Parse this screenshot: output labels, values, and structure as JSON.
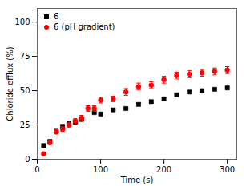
{
  "chart_data": {
    "type": "scatter",
    "xlabel": "Time (s)",
    "ylabel": "Chloride efflux (%)",
    "xlim": [
      0,
      315
    ],
    "ylim": [
      0,
      110
    ],
    "xticks": [
      0,
      100,
      200,
      300
    ],
    "yticks": [
      0,
      25,
      50,
      75,
      100
    ],
    "grid": false,
    "legend": "upper left",
    "series": [
      {
        "name": "6",
        "color": "#000000",
        "marker": "square",
        "x": [
          10,
          20,
          30,
          40,
          50,
          60,
          70,
          90,
          100,
          120,
          140,
          160,
          180,
          200,
          220,
          240,
          260,
          280,
          300
        ],
        "values": [
          10,
          13,
          21,
          24,
          26,
          27,
          29,
          34,
          33,
          36,
          37,
          40,
          42,
          44,
          47,
          49,
          50,
          51,
          52
        ],
        "errors": [
          0.8,
          0.8,
          0.8,
          0.8,
          0.8,
          0.8,
          0.8,
          0.8,
          0.8,
          0.8,
          0.8,
          0.8,
          0.8,
          0.8,
          0.8,
          0.8,
          0.8,
          0.8,
          0.8
        ]
      },
      {
        "name": "6 (pH gradient)",
        "color": "#ff0000",
        "marker": "circle",
        "x": [
          10,
          20,
          30,
          40,
          50,
          60,
          70,
          80,
          90,
          100,
          120,
          140,
          160,
          180,
          200,
          220,
          240,
          260,
          280,
          300
        ],
        "values": [
          4,
          12,
          20,
          22,
          25,
          28,
          30,
          37,
          37,
          43,
          44,
          49,
          53,
          54,
          58,
          61,
          62,
          63,
          64,
          65
        ],
        "errors": [
          0.5,
          1.0,
          1.5,
          1.5,
          1.5,
          1.5,
          2.0,
          2.0,
          2.0,
          2.0,
          2.0,
          2.5,
          2.5,
          2.5,
          2.5,
          2.5,
          2.5,
          2.5,
          2.5,
          2.5
        ]
      }
    ]
  }
}
